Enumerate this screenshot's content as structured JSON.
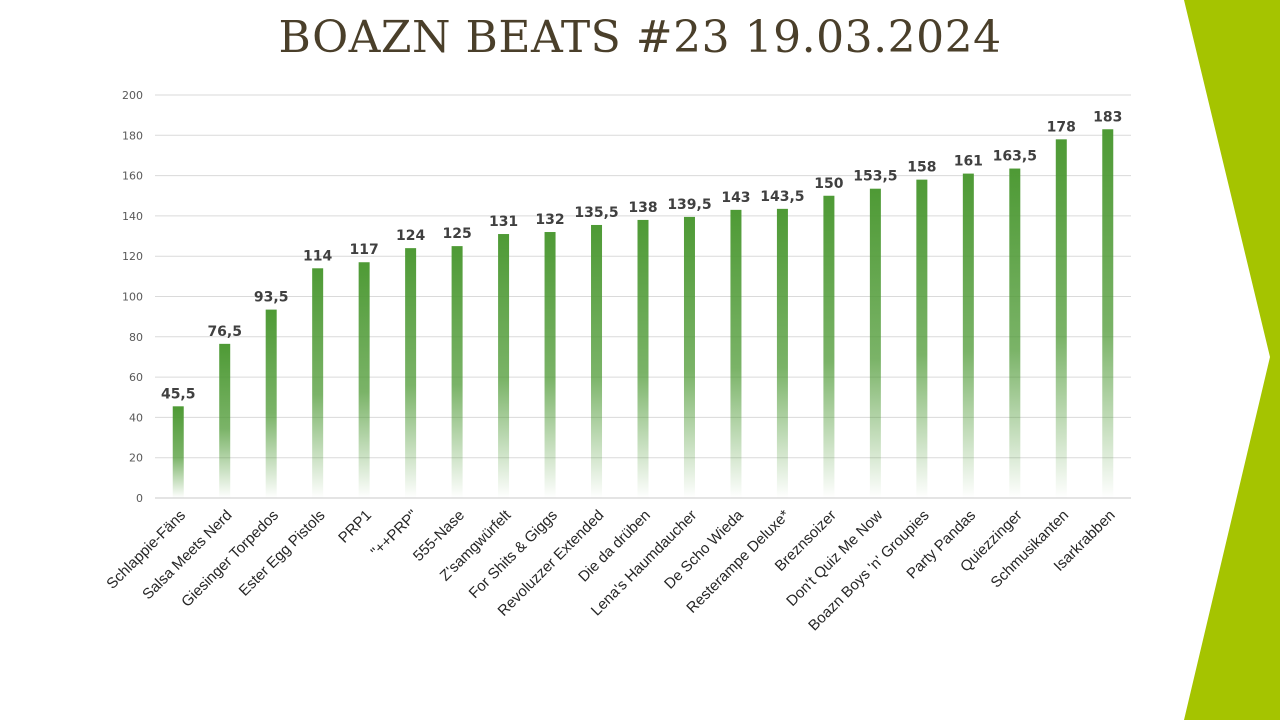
{
  "slide": {
    "title": "BOAZN BEATS #23 19.03.2024",
    "accent_color": "#a5c400",
    "bar_color": "#4e9a35"
  },
  "chart_data": {
    "type": "bar",
    "title": "",
    "xlabel": "",
    "ylabel": "",
    "ylim": [
      0,
      200
    ],
    "yticks": [
      0,
      20,
      40,
      60,
      80,
      100,
      120,
      140,
      160,
      180,
      200
    ],
    "grid": true,
    "categories": [
      "Schlappie-Fäns",
      "Salsa Meets Nerd",
      "Giesinger Torpedos",
      "Ester Egg Pistols",
      "PRP1",
      "\"++PRP\"",
      "555-Nase",
      "Z'samgwürfelt",
      "For Shits & Giggs",
      "Revoluzzer Extended",
      "Die da drüben",
      "Lena's Haumdaucher",
      "De Scho Wieda",
      "Resterampe Deluxe*",
      "Breznsoizer",
      "Don't Quiz Me Now",
      "Boazn Boys 'n' Groupies",
      "Party Pandas",
      "Quiezzinger",
      "Schmusikanten",
      "Isarkrabben"
    ],
    "values": [
      45.5,
      76.5,
      93.5,
      114,
      117,
      124,
      125,
      131,
      132,
      135.5,
      138,
      139.5,
      143,
      143.5,
      150,
      153.5,
      158,
      161,
      163.5,
      178,
      183
    ],
    "value_labels": [
      "45,5",
      "76,5",
      "93,5",
      "114",
      "117",
      "124",
      "125",
      "131",
      "132",
      "135,5",
      "138",
      "139,5",
      "143",
      "143,5",
      "150",
      "153,5",
      "158",
      "161",
      "163,5",
      "178",
      "183"
    ]
  }
}
